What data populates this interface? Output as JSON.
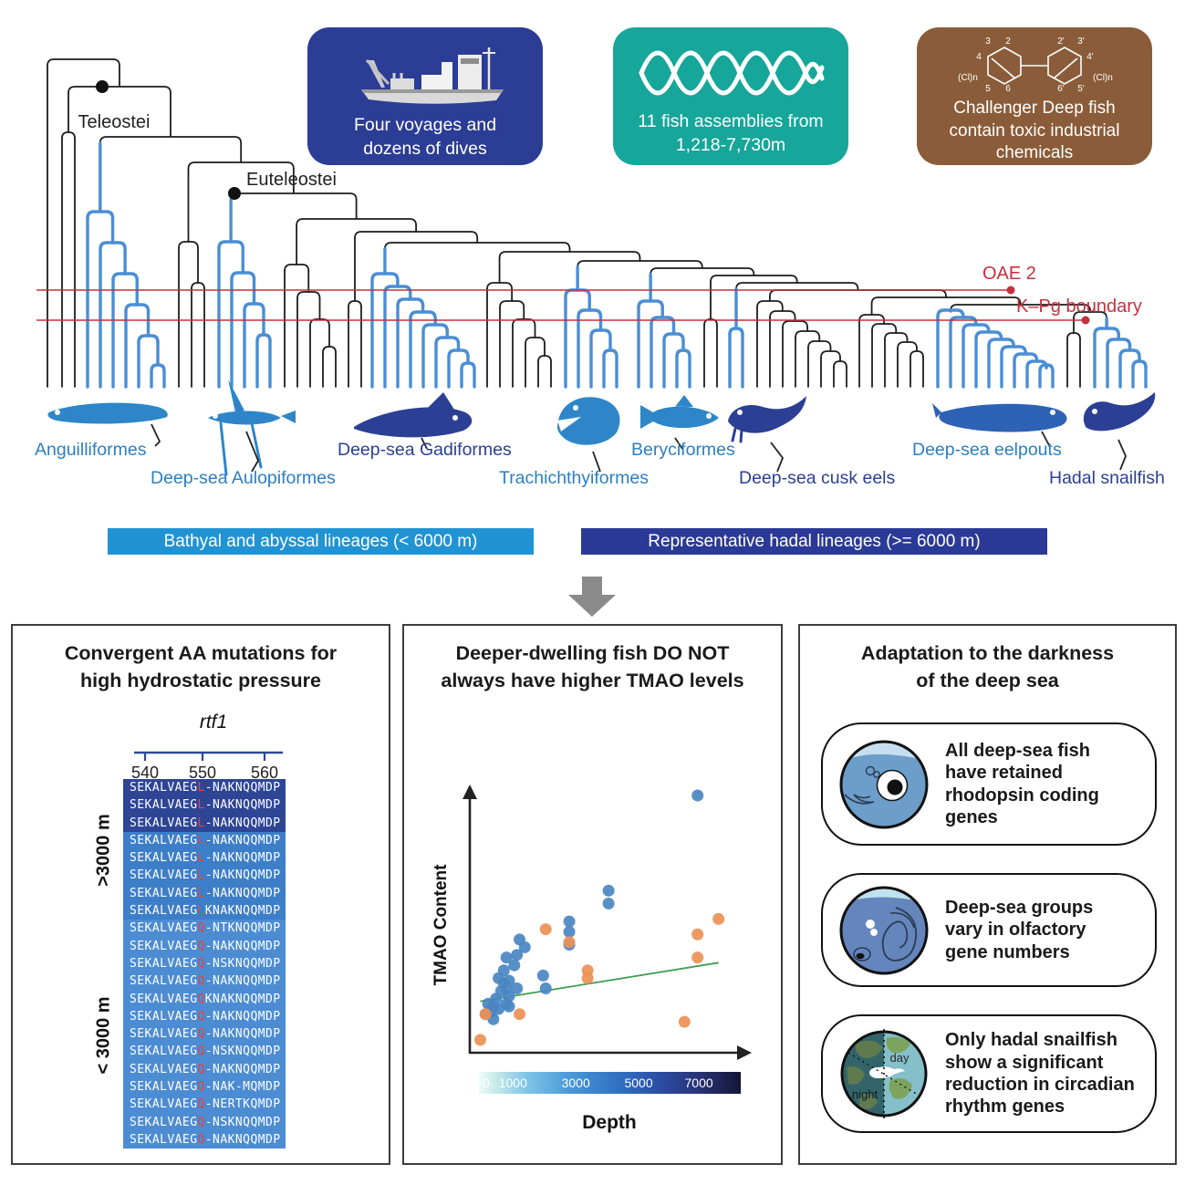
{
  "header_boxes": [
    {
      "id": "voyages",
      "color": "#2c3d96",
      "icon": "research-vessel-icon",
      "text": "Four voyages and\ndozens of dives"
    },
    {
      "id": "assemblies",
      "color": "#16a69a",
      "icon": "dna-helix-icon",
      "text": "11 fish assemblies from\n1,218-7,730m"
    },
    {
      "id": "chemicals",
      "color": "#8a5c39",
      "icon": "pcb-molecule-icon",
      "text": "Challenger Deep fish\ncontain toxic industrial\nchemicals",
      "ring_labels": [
        "3",
        "2",
        "2'",
        "3'",
        "4",
        "4'",
        "(Cl)n",
        "5",
        "6",
        "6'",
        "5'",
        "(Cl)n"
      ]
    }
  ],
  "tree": {
    "clade_labels": [
      "Teleostei",
      "Euteleostei"
    ],
    "events": [
      {
        "label": "OAE 2"
      },
      {
        "label": "K–Pg boundary"
      }
    ],
    "branch_colors": {
      "highlight": "#4a8ed5",
      "default": "#1d1d1d",
      "event": "#c5303e"
    }
  },
  "fish_groups": [
    {
      "name": "Anguilliformes",
      "tone": "light"
    },
    {
      "name": "Deep-sea Aulopiformes",
      "tone": "light"
    },
    {
      "name": "Deep-sea Gadiformes",
      "tone": "dark"
    },
    {
      "name": "Trachichthyiformes",
      "tone": "light"
    },
    {
      "name": "Beryciformes",
      "tone": "light"
    },
    {
      "name": "Deep-sea cusk eels",
      "tone": "dark"
    },
    {
      "name": "Deep-sea eelpouts",
      "tone": "light"
    },
    {
      "name": "Hadal snailfish",
      "tone": "dark"
    }
  ],
  "legend": [
    {
      "label": "Bathyal and abyssal lineages (< 6000 m)",
      "color": "#2193d3"
    },
    {
      "label": "Representative hadal lineages (>= 6000 m)",
      "color": "#2b3a96"
    }
  ],
  "left_panel": {
    "title": "Convergent AA mutations for\nhigh hydrostatic pressure",
    "gene": "rtf1",
    "axis_ticks": [
      "540",
      "550",
      "560"
    ],
    "mutation_index": 9,
    "groups": [
      {
        "label": ">3000 m",
        "rows": [
          {
            "seq": "SEKALVAEGL-NAKNQQMDP",
            "shade": "hadal"
          },
          {
            "seq": "SEKALVAEGL-NAKNQQMDP",
            "shade": "hadal"
          },
          {
            "seq": "SEKALVAEGL-NAKNQQMDP",
            "shade": "hadal"
          },
          {
            "seq": "SEKALVAEGL-NAKNQQMDP",
            "shade": "deep"
          },
          {
            "seq": "SEKALVAEGL-NAKNQQMDP",
            "shade": "deep"
          },
          {
            "seq": "SEKALVAEGL-NAKNQQMDP",
            "shade": "deep"
          },
          {
            "seq": "SEKALVAEGL-NAKNQQMDP",
            "shade": "deep"
          },
          {
            "seq": "SEKALVAEGLKNAKNQQMDP",
            "shade": "deep"
          }
        ]
      },
      {
        "label": "< 3000 m",
        "rows": [
          {
            "seq": "SEKALVAEGQ-NTKNQQMDP",
            "shade": "shallow"
          },
          {
            "seq": "SEKALVAEGQ-NAKNQQMDP",
            "shade": "shallow"
          },
          {
            "seq": "SEKALVAEGQ-NSKNQQMDP",
            "shade": "shallow"
          },
          {
            "seq": "SEKALVAEGQ-NAKNQQMDP",
            "shade": "shallow"
          },
          {
            "seq": "SEKALVAEGQKNAKNQQMDP",
            "shade": "shallow"
          },
          {
            "seq": "SEKALVAEGQ-NAKNQQMDP",
            "shade": "shallow"
          },
          {
            "seq": "SEKALVAEGQ-NAKNQQMDP",
            "shade": "shallow"
          },
          {
            "seq": "SEKALVAEGQ-NSKNQQMDP",
            "shade": "shallow"
          },
          {
            "seq": "SEKALVAEGQ-NAKNQQMDP",
            "shade": "shallow"
          },
          {
            "seq": "SEKALVAEGQ-NAK-MQMDP",
            "shade": "shallow"
          },
          {
            "seq": "SEKALVAEGQ-NERTKQMDP",
            "shade": "shallow"
          },
          {
            "seq": "SEKALVAEGQ-NSKNQQMDP",
            "shade": "shallow"
          },
          {
            "seq": "SEKALVAEGQ-NAKNQQMDP",
            "shade": "shallow"
          }
        ]
      }
    ]
  },
  "middle_panel": {
    "title": "Deeper-dwelling fish DO NOT\nalways have higher TMAO levels",
    "ylabel": "TMAO Content",
    "xlabel": "Depth"
  },
  "chart_data": {
    "type": "scatter",
    "title": "Deeper-dwelling fish DO NOT always have higher TMAO levels",
    "xlabel": "Depth",
    "ylabel": "TMAO Content",
    "x_range": [
      0,
      1
    ],
    "y_range": [
      0,
      1
    ],
    "grid": false,
    "series": [
      {
        "name": "blue-points",
        "color": "#4a86c2",
        "points": [
          [
            0.87,
            1.0
          ],
          [
            0.53,
            0.63
          ],
          [
            0.53,
            0.58
          ],
          [
            0.38,
            0.51
          ],
          [
            0.38,
            0.47
          ],
          [
            0.38,
            0.42
          ],
          [
            0.19,
            0.44
          ],
          [
            0.21,
            0.41
          ],
          [
            0.14,
            0.37
          ],
          [
            0.18,
            0.38
          ],
          [
            0.17,
            0.34
          ],
          [
            0.13,
            0.32
          ],
          [
            0.11,
            0.29
          ],
          [
            0.15,
            0.28
          ],
          [
            0.28,
            0.3
          ],
          [
            0.13,
            0.27
          ],
          [
            0.14,
            0.25
          ],
          [
            0.18,
            0.25
          ],
          [
            0.29,
            0.25
          ],
          [
            0.12,
            0.24
          ],
          [
            0.15,
            0.22
          ],
          [
            0.1,
            0.21
          ],
          [
            0.14,
            0.19
          ],
          [
            0.07,
            0.19
          ],
          [
            0.09,
            0.18
          ],
          [
            0.11,
            0.17
          ],
          [
            0.08,
            0.16
          ],
          [
            0.06,
            0.15
          ],
          [
            0.15,
            0.18
          ],
          [
            0.09,
            0.13
          ]
        ]
      },
      {
        "name": "orange-points",
        "color": "#ec9155",
        "points": [
          [
            0.29,
            0.48
          ],
          [
            0.38,
            0.43
          ],
          [
            0.45,
            0.32
          ],
          [
            0.45,
            0.29
          ],
          [
            0.19,
            0.15
          ],
          [
            0.06,
            0.15
          ],
          [
            0.04,
            0.05
          ],
          [
            0.95,
            0.52
          ],
          [
            0.87,
            0.46
          ],
          [
            0.87,
            0.37
          ],
          [
            0.82,
            0.12
          ]
        ]
      }
    ],
    "trendline": {
      "color": "#3f9b53",
      "from": [
        0.04,
        0.2
      ],
      "to": [
        0.95,
        0.35
      ]
    },
    "colorbar": {
      "label": "Depth",
      "ticks": [
        "0",
        "1000",
        "3000",
        "5000",
        "7000"
      ],
      "tick_positions_pct": [
        0,
        13,
        37,
        61,
        84
      ]
    }
  },
  "right_panel": {
    "title": "Adaptation to the darkness\nof the deep sea",
    "cards": [
      {
        "icon": "fish-eye-icon",
        "text": "All deep-sea fish\nhave retained\nrhodopsin coding\ngenes"
      },
      {
        "icon": "fish-olfactory-icon",
        "text": "Deep-sea groups\nvary in olfactory\ngene numbers"
      },
      {
        "icon": "earth-day-night-icon",
        "text": "Only hadal snailfish\nshow a significant\nreduction in circadian\nrhythm genes",
        "earth_labels": {
          "day": "day",
          "night": "night"
        }
      }
    ]
  }
}
